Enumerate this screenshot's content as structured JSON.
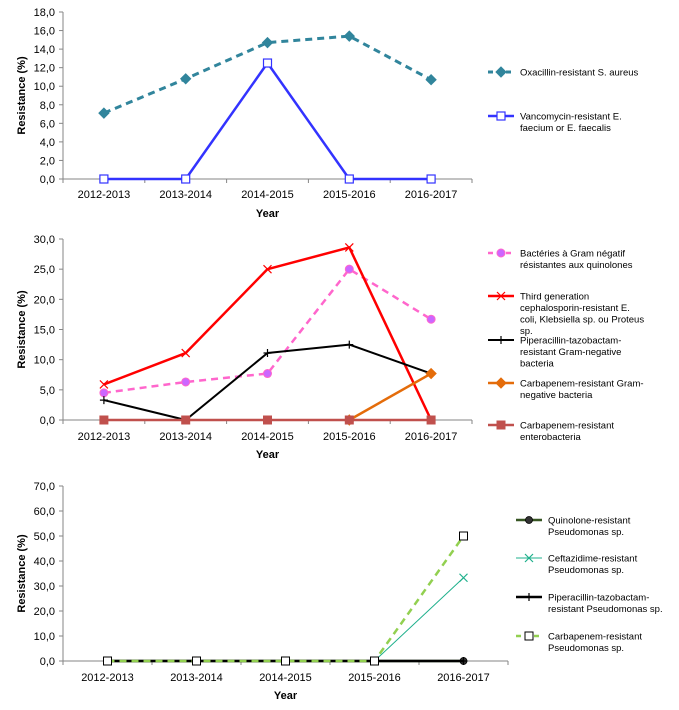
{
  "chart_data": [
    {
      "type": "line",
      "categories": [
        "2012-2013",
        "2013-2014",
        "2014-2015",
        "2015-2016",
        "2016-2017"
      ],
      "xlabel": "Year",
      "ylabel": "Resistance (%)",
      "ylim": [
        0,
        18
      ],
      "ytick_step": 2,
      "yticks": [
        "0,0",
        "2,0",
        "4,0",
        "6,0",
        "8,0",
        "10,0",
        "12,0",
        "14,0",
        "16,0",
        "18,0"
      ],
      "grid": false,
      "legend_position": "right",
      "series": [
        {
          "name": "Oxacillin-resistant S. aureus",
          "legend_lines": [
            "Oxacillin-resistant S. aureus"
          ],
          "values": [
            7.1,
            10.8,
            14.7,
            15.4,
            10.7
          ],
          "color": "#31859c",
          "dash": true,
          "marker": "diamond",
          "width": 3
        },
        {
          "name": "Vancomycin-resistant E. faecium or E. faecalis",
          "legend_lines": [
            "Vancomycin-resistant E.",
            "faecium or E. faecalis"
          ],
          "values": [
            0.0,
            0.0,
            12.5,
            0.0,
            0.0
          ],
          "color": "#3333ff",
          "dash": false,
          "marker": "square-open",
          "width": 2.5
        }
      ]
    },
    {
      "type": "line",
      "categories": [
        "2012-2013",
        "2013-2014",
        "2014-2015",
        "2015-2016",
        "2016-2017"
      ],
      "xlabel": "Year",
      "ylabel": "Resistance (%)",
      "ylim": [
        0,
        30
      ],
      "ytick_step": 5,
      "yticks": [
        "0,0",
        "5,0",
        "10,0",
        "15,0",
        "20,0",
        "25,0",
        "30,0"
      ],
      "grid": false,
      "legend_position": "right",
      "series": [
        {
          "name": "Bactéries à Gram négatif résistantes aux quinolones",
          "legend_lines": [
            "Bactéries à Gram négatif",
            "résistantes aux quinolones"
          ],
          "values": [
            4.5,
            6.3,
            7.7,
            25.0,
            16.7
          ],
          "color": "#ff66cc",
          "dash": true,
          "marker": "circle",
          "width": 2.5
        },
        {
          "name": "Third generation cephalosporin-resistant E. coli, Klebsiella sp. ou Proteus sp.",
          "legend_lines": [
            "Third generation",
            "cephalosporin-resistant E.",
            "coli, Klebsiella sp. ou Proteus",
            "sp."
          ],
          "values": [
            5.9,
            11.1,
            25.0,
            28.6,
            0.0
          ],
          "color": "#ff0000",
          "dash": false,
          "marker": "x",
          "width": 2.5
        },
        {
          "name": "Piperacillin-tazobactam-resistant Gram-negative bacteria",
          "legend_lines": [
            "Piperacillin-tazobactam-",
            "resistant Gram-negative",
            "bacteria"
          ],
          "values": [
            3.3,
            0.0,
            11.1,
            12.5,
            7.7
          ],
          "color": "#000000",
          "dash": false,
          "marker": "plus",
          "width": 2
        },
        {
          "name": "Carbapenem-resistant Gram-negative bacteria",
          "legend_lines": [
            "Carbapenem-resistant Gram-",
            "negative bacteria"
          ],
          "values": [
            null,
            null,
            null,
            0.0,
            7.7
          ],
          "color": "#e46c0a",
          "dash": false,
          "marker": "diamond",
          "width": 2.5
        },
        {
          "name": "Carbapenem-resistant enterobacteria",
          "legend_lines": [
            "Carbapenem-resistant",
            "enterobacteria"
          ],
          "values": [
            0.0,
            0.0,
            0.0,
            0.0,
            0.0
          ],
          "color": "#c0504d",
          "dash": false,
          "marker": "square",
          "width": 2.5
        }
      ]
    },
    {
      "type": "line",
      "categories": [
        "2012-2013",
        "2013-2014",
        "2014-2015",
        "2015-2016",
        "2016-2017"
      ],
      "xlabel": "Year",
      "ylabel": "Resistance (%)",
      "ylim": [
        0,
        70
      ],
      "ytick_step": 10,
      "yticks": [
        "0,0",
        "10,0",
        "20,0",
        "30,0",
        "40,0",
        "50,0",
        "60,0",
        "70,0"
      ],
      "grid": false,
      "legend_position": "right",
      "series": [
        {
          "name": "Quinolone-resistant Pseudomonas sp.",
          "legend_lines": [
            "Quinolone-resistant",
            "Pseudomonas sp."
          ],
          "values": [
            0.0,
            0.0,
            0.0,
            0.0,
            0.0
          ],
          "color": "#375623",
          "dash": false,
          "marker": "dot",
          "width": 2.5
        },
        {
          "name": "Ceftazidime-resistant Pseudomonas sp.",
          "legend_lines": [
            "Ceftazidime-resistant",
            "Pseudomonas sp."
          ],
          "values": [
            0.0,
            0.0,
            0.0,
            0.0,
            33.3
          ],
          "color": "#1fb08c",
          "dash": false,
          "marker": "x",
          "width": 1
        },
        {
          "name": "Piperacillin-tazobactam-resistant Pseudomonas sp.",
          "legend_lines": [
            "Piperacillin-tazobactam-",
            "resistant Pseudomonas sp."
          ],
          "values": [
            0.0,
            0.0,
            0.0,
            0.0,
            0.0
          ],
          "color": "#000000",
          "dash": false,
          "marker": "plus",
          "width": 2.5
        },
        {
          "name": "Carbapenem-resistant Pseudomonas sp.",
          "legend_lines": [
            "Carbapenem-resistant",
            "Pseudomonas sp."
          ],
          "values": [
            0.0,
            0.0,
            0.0,
            0.0,
            50.0
          ],
          "color": "#92d050",
          "dash": true,
          "marker": "square-open-dark",
          "width": 2.5
        }
      ]
    }
  ]
}
